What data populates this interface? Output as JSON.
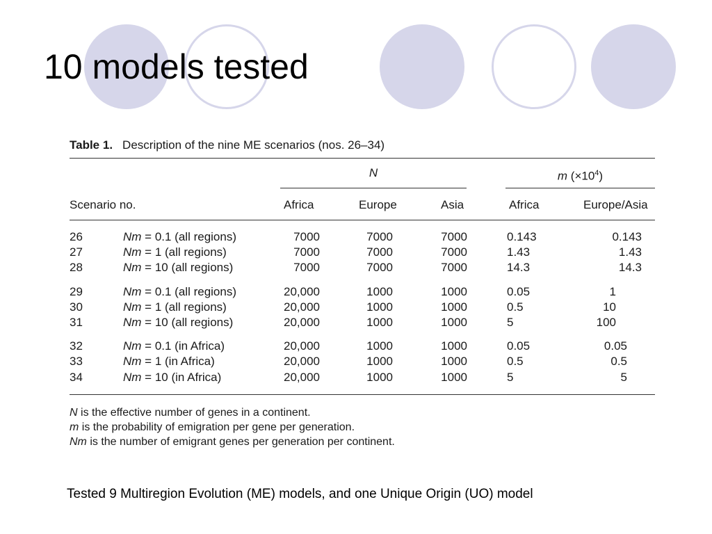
{
  "slide": {
    "title": "10 models tested",
    "caption": "Tested 9 Multiregion Evolution (ME) models, and one Unique Origin (UO) model"
  },
  "table": {
    "label": "Table 1.",
    "caption": "Description of the nine ME scenarios (nos. 26–34)",
    "group_N": "N",
    "group_m_italic": "m",
    "group_m_rest": " (×10",
    "group_m_exp": "4",
    "group_m_close": ")",
    "col_scenario": "Scenario no.",
    "col_africa_N": "Africa",
    "col_europe_N": "Europe",
    "col_asia_N": "Asia",
    "col_africa_m": "Africa",
    "col_eurasia_m": "Europe/Asia",
    "rows": [
      {
        "no": "26",
        "nm": "Nm",
        "desc": " = 0.1 (all regions)",
        "africa": "7000",
        "europe": "7000",
        "asia": "7000",
        "m_africa": "0.143",
        "m_eurasia": "0.143"
      },
      {
        "no": "27",
        "nm": "Nm",
        "desc": " = 1 (all regions)",
        "africa": "7000",
        "europe": "7000",
        "asia": "7000",
        "m_africa": "1.43",
        "m_eurasia": "1.43"
      },
      {
        "no": "28",
        "nm": "Nm",
        "desc": " = 10 (all regions)",
        "africa": "7000",
        "europe": "7000",
        "asia": "7000",
        "m_africa": "14.3",
        "m_eurasia": "14.3"
      },
      {
        "no": "29",
        "nm": "Nm",
        "desc": " = 0.1 (all regions)",
        "africa": "20,000",
        "europe": "1000",
        "asia": "1000",
        "m_africa": "0.05",
        "m_eurasia": "1"
      },
      {
        "no": "30",
        "nm": "Nm",
        "desc": " = 1 (all regions)",
        "africa": "20,000",
        "europe": "1000",
        "asia": "1000",
        "m_africa": "0.5",
        "m_eurasia": "10"
      },
      {
        "no": "31",
        "nm": "Nm",
        "desc": " = 10 (all regions)",
        "africa": "20,000",
        "europe": "1000",
        "asia": "1000",
        "m_africa": "5",
        "m_eurasia": "100"
      },
      {
        "no": "32",
        "nm": "Nm",
        "desc": " = 0.1 (in Africa)",
        "africa": "20,000",
        "europe": "1000",
        "asia": "1000",
        "m_africa": "0.05",
        "m_eurasia": "0.05"
      },
      {
        "no": "33",
        "nm": "Nm",
        "desc": " = 1 (in Africa)",
        "africa": "20,000",
        "europe": "1000",
        "asia": "1000",
        "m_africa": "0.5",
        "m_eurasia": "0.5"
      },
      {
        "no": "34",
        "nm": "Nm",
        "desc": " = 10 (in Africa)",
        "africa": "20,000",
        "europe": "1000",
        "asia": "1000",
        "m_africa": "5",
        "m_eurasia": "5"
      }
    ],
    "footnotes": [
      {
        "italic": "N",
        "text": " is the effective number of genes in a continent."
      },
      {
        "italic": "m",
        "text": " is the probability of emigration per gene per generation."
      },
      {
        "italic": "Nm",
        "text": " is the number of emigrant genes per generation per continent."
      }
    ]
  },
  "colors": {
    "circle_fill": "#d6d6ea"
  }
}
